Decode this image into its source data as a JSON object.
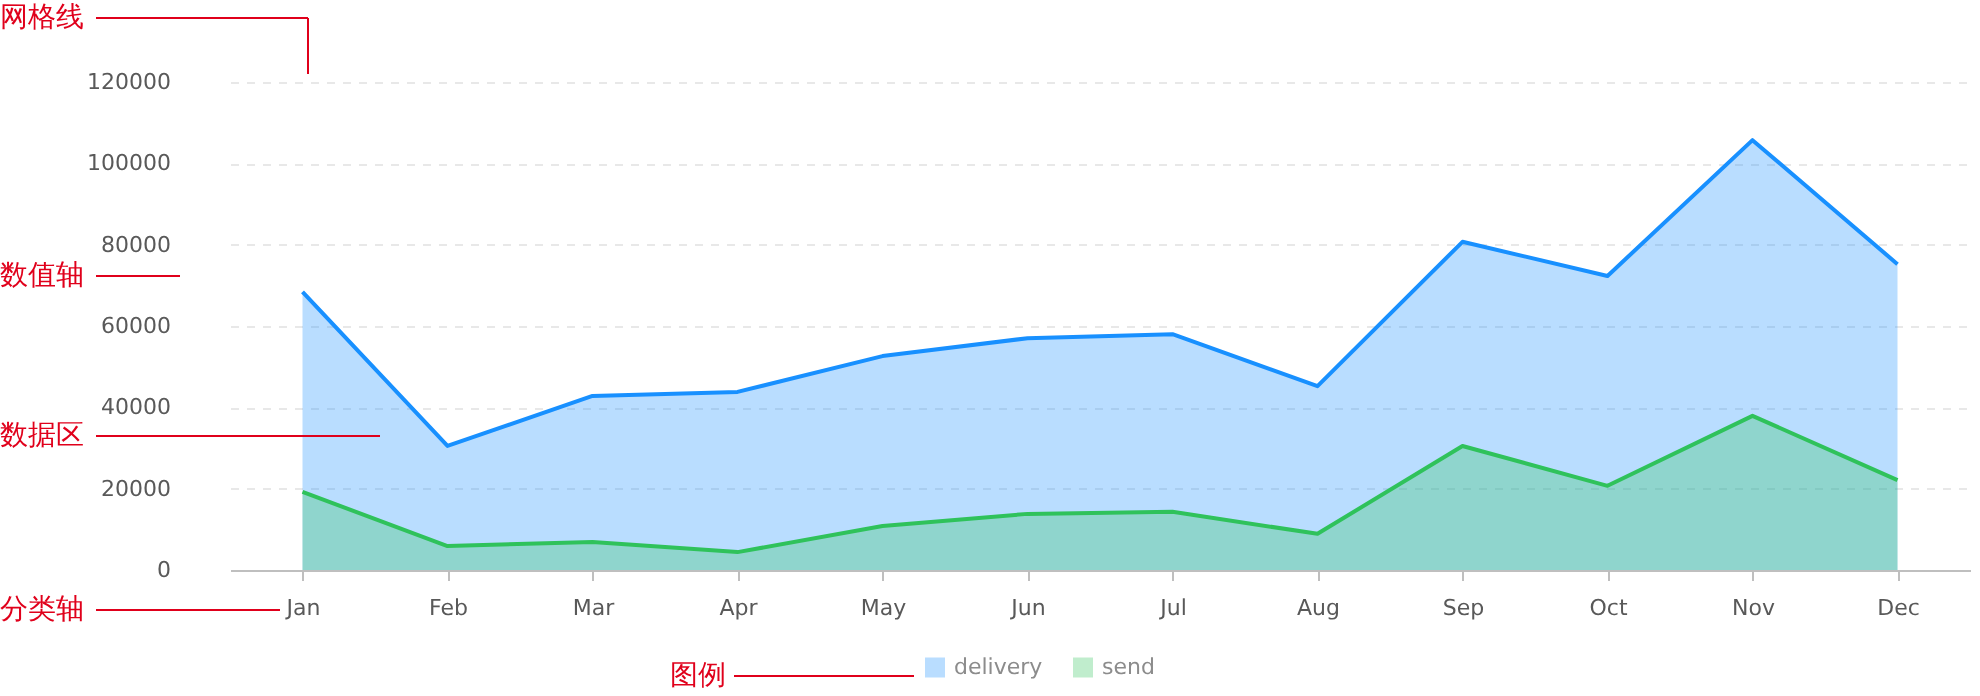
{
  "chart_data": {
    "type": "area",
    "categories": [
      "Jan",
      "Feb",
      "Mar",
      "Apr",
      "May",
      "Jun",
      "Jul",
      "Aug",
      "Sep",
      "Oct",
      "Nov",
      "Dec"
    ],
    "series": [
      {
        "name": "delivery",
        "color": "#1890ff",
        "values": [
          68400,
          30500,
          42800,
          43800,
          52600,
          57000,
          58000,
          45200,
          80700,
          72300,
          105700,
          75200
        ]
      },
      {
        "name": "send",
        "color": "#2fc25b",
        "values": [
          19200,
          5900,
          6900,
          4400,
          10800,
          13800,
          14300,
          8900,
          30500,
          20700,
          37900,
          22100
        ]
      }
    ],
    "ylim": [
      0,
      120000
    ],
    "yticks": [
      0,
      20000,
      40000,
      60000,
      80000,
      100000,
      120000
    ],
    "grid": "y",
    "legend": "bottom",
    "annotations": [
      "网格线",
      "数值轴",
      "数据区",
      "分类轴",
      "图例"
    ]
  }
}
